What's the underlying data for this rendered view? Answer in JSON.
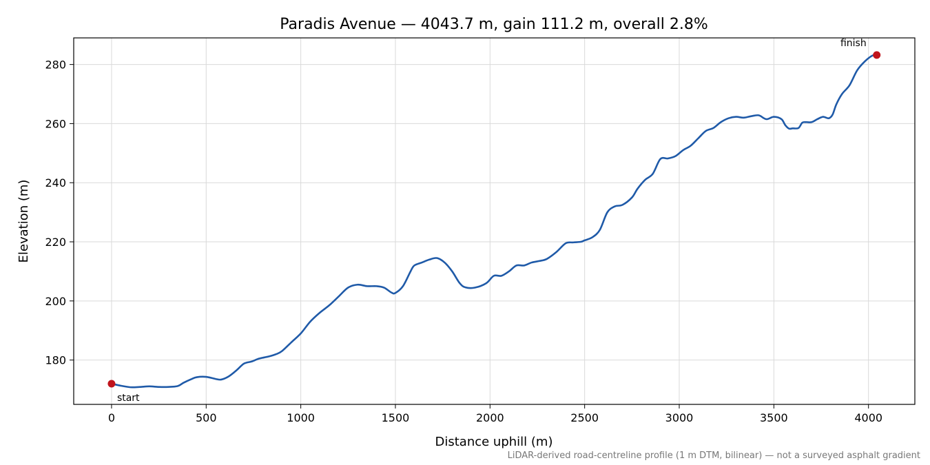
{
  "chart_data": {
    "type": "line",
    "title": "Paradis Avenue — 4043.7 m, gain 111.2 m, overall 2.8%",
    "xlabel": "Distance uphill (m)",
    "ylabel": "Elevation (m)",
    "xlim": [
      -200,
      4245
    ],
    "ylim": [
      165,
      289
    ],
    "xticks": [
      0,
      500,
      1000,
      1500,
      2000,
      2500,
      3000,
      3500,
      4000
    ],
    "yticks": [
      180,
      200,
      220,
      240,
      260,
      280
    ],
    "grid": true,
    "line_color": "#1f5aa8",
    "marker_color": "#c0141c",
    "series": [
      {
        "x": [
          0,
          50,
          100,
          150,
          200,
          250,
          300,
          350,
          380,
          420,
          450,
          500,
          550,
          580,
          620,
          660,
          700,
          740,
          780,
          830,
          870,
          900,
          950,
          1000,
          1050,
          1100,
          1150,
          1200,
          1250,
          1300,
          1350,
          1400,
          1440,
          1480,
          1500,
          1540,
          1580,
          1600,
          1640,
          1680,
          1720,
          1760,
          1800,
          1840,
          1870,
          1920,
          1980,
          2020,
          2060,
          2100,
          2140,
          2180,
          2220,
          2260,
          2300,
          2350,
          2400,
          2440,
          2480,
          2500,
          2540,
          2580,
          2620,
          2660,
          2700,
          2750,
          2780,
          2820,
          2860,
          2900,
          2940,
          2980,
          3020,
          3060,
          3100,
          3140,
          3180,
          3220,
          3260,
          3300,
          3340,
          3380,
          3420,
          3460,
          3500,
          3540,
          3560,
          3580,
          3600,
          3630,
          3650,
          3670,
          3700,
          3730,
          3760,
          3790,
          3810,
          3830,
          3860,
          3900,
          3940,
          3980,
          4020,
          4043.7
        ],
        "y": [
          172,
          171.3,
          170.8,
          170.9,
          171.1,
          170.9,
          170.9,
          171.2,
          172.3,
          173.5,
          174.2,
          174.3,
          173.6,
          173.4,
          174.5,
          176.5,
          178.8,
          179.5,
          180.5,
          181.2,
          182.0,
          183.0,
          186.0,
          189.0,
          193.0,
          196.0,
          198.5,
          201.5,
          204.5,
          205.5,
          205.0,
          205.0,
          204.5,
          202.8,
          202.7,
          205.0,
          210.0,
          212.0,
          213.0,
          214.0,
          214.5,
          213.0,
          210.0,
          206.0,
          204.6,
          204.5,
          206.0,
          208.5,
          208.5,
          210.0,
          212.0,
          212.0,
          213.0,
          213.5,
          214.2,
          216.5,
          219.5,
          219.8,
          220.0,
          220.5,
          221.5,
          224.0,
          230.0,
          232.0,
          232.5,
          235.0,
          238.0,
          241.0,
          243.0,
          248.0,
          248.2,
          249.0,
          251.0,
          252.5,
          255.0,
          257.5,
          258.5,
          260.5,
          261.8,
          262.3,
          262.0,
          262.5,
          262.8,
          261.5,
          262.3,
          261.5,
          259.5,
          258.3,
          258.4,
          258.5,
          260.3,
          260.5,
          260.5,
          261.5,
          262.3,
          261.8,
          263.0,
          266.5,
          270.0,
          273.0,
          278.0,
          281.0,
          283.0,
          283.2
        ]
      }
    ],
    "annotations": [
      {
        "text": "start",
        "x": 0,
        "y": 172
      },
      {
        "text": "finish",
        "x": 4043.7,
        "y": 283.2
      }
    ],
    "footnote": "LiDAR-derived road-centreline profile (1 m DTM, bilinear) — not a surveyed asphalt gradient"
  }
}
